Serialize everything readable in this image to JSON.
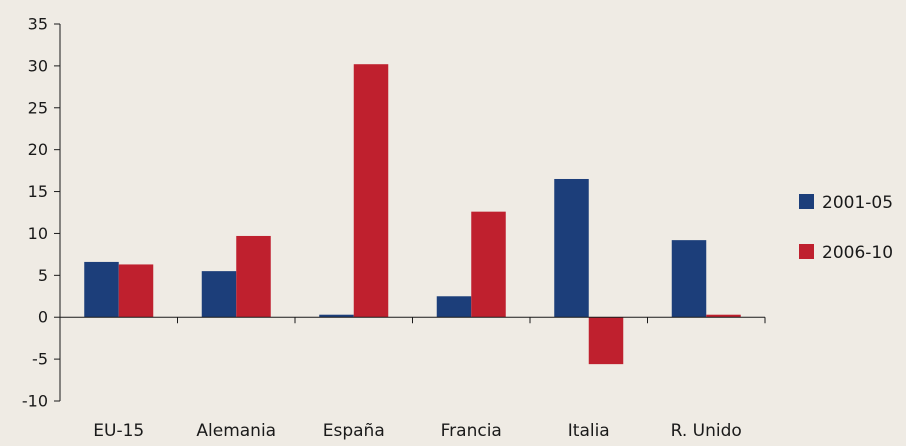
{
  "chart_data": {
    "type": "bar",
    "categories": [
      "EU-15",
      "Alemania",
      "España",
      "Francia",
      "Italia",
      "R. Unido"
    ],
    "series": [
      {
        "name": "2001-05",
        "color": "#1c3e7a",
        "values": [
          6.6,
          5.5,
          0.3,
          2.5,
          16.5,
          9.2
        ]
      },
      {
        "name": "2006-10",
        "color": "#bf202e",
        "values": [
          6.3,
          9.7,
          30.2,
          12.6,
          -5.6,
          0.3
        ]
      }
    ],
    "yticks": [
      "35",
      "30",
      "25",
      "20",
      "15",
      "10",
      "5",
      "0",
      "-5",
      "-10"
    ],
    "ylim": [
      -10,
      35
    ],
    "grid": false,
    "legend_position": "right"
  }
}
